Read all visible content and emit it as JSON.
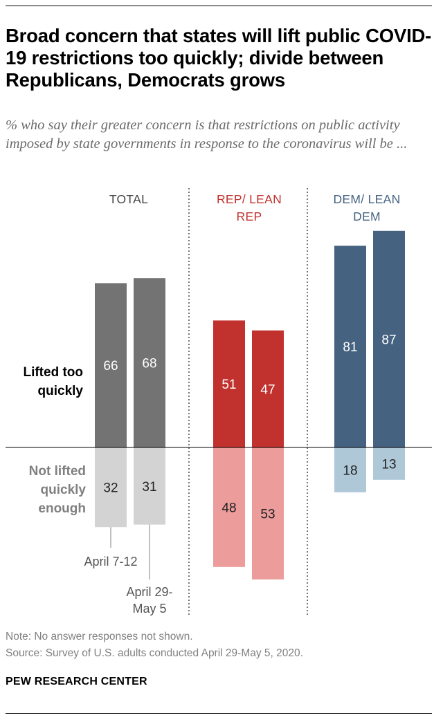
{
  "title": "Broad concern that states will lift public COVID-19 restrictions too quickly; divide between Republicans, Democrats grows",
  "subtitle": "% who say their greater concern is that restrictions on public activity imposed by state governments in response to the coronavirus will be ...",
  "row_labels": {
    "top": "Lifted too quickly",
    "bottom": "Not lifted quickly enough"
  },
  "note": "Note: No answer responses not shown.",
  "source": "Source: Survey of U.S. adults conducted April 29-May 5, 2020.",
  "brand": "PEW RESEARCH CENTER",
  "colors": {
    "total_dark": "#737373",
    "total_light": "#d3d3d3",
    "rep_dark": "#c1312d",
    "rep_light": "#eb9c9b",
    "dem_dark": "#456281",
    "dem_light": "#afc8d8"
  },
  "chart_data": {
    "type": "bar",
    "orientation": "vertical-diverging",
    "time_labels": [
      "April 7-12",
      "April 29-May 5"
    ],
    "groups": [
      {
        "label": "TOTAL",
        "lifted_too_quickly": [
          66,
          68
        ],
        "not_lifted_quickly_enough": [
          32,
          31
        ]
      },
      {
        "label": "REP/ LEAN REP",
        "lifted_too_quickly": [
          51,
          47
        ],
        "not_lifted_quickly_enough": [
          48,
          53
        ]
      },
      {
        "label": "DEM/ LEAN DEM",
        "lifted_too_quickly": [
          81,
          87
        ],
        "not_lifted_quickly_enough": [
          18,
          13
        ]
      }
    ]
  }
}
